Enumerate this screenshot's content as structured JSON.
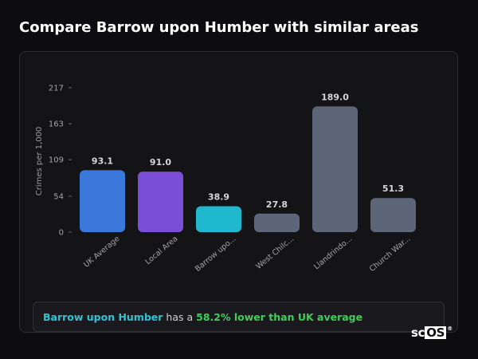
{
  "page": {
    "title": "Compare Barrow upon Humber with similar areas"
  },
  "chart_data": {
    "type": "bar",
    "ylabel": "Crimes per 1,000",
    "xlabel": "",
    "ylim": [
      0,
      217
    ],
    "yticks": [
      0,
      54,
      109,
      163,
      217
    ],
    "grid": false,
    "categories": [
      "UK Average",
      "Local Area",
      "Barrow upo...",
      "West Chilc...",
      "Llandrindo...",
      "Church War..."
    ],
    "values": [
      93.1,
      91.0,
      38.9,
      27.8,
      189.0,
      51.3
    ],
    "value_labels": [
      "93.1",
      "91.0",
      "38.9",
      "27.8",
      "189.0",
      "51.3"
    ],
    "colors": [
      "#3b78dc",
      "#7b4ed8",
      "#1fb8cf",
      "#5c6678",
      "#5c6678",
      "#5c6678"
    ]
  },
  "insight": {
    "area_name": "Barrow upon Humber",
    "middle_text": " has a ",
    "highlight": "58.2% lower than UK average"
  },
  "logo": {
    "prefix": "sc",
    "boxed": "OS",
    "mark": "®"
  }
}
